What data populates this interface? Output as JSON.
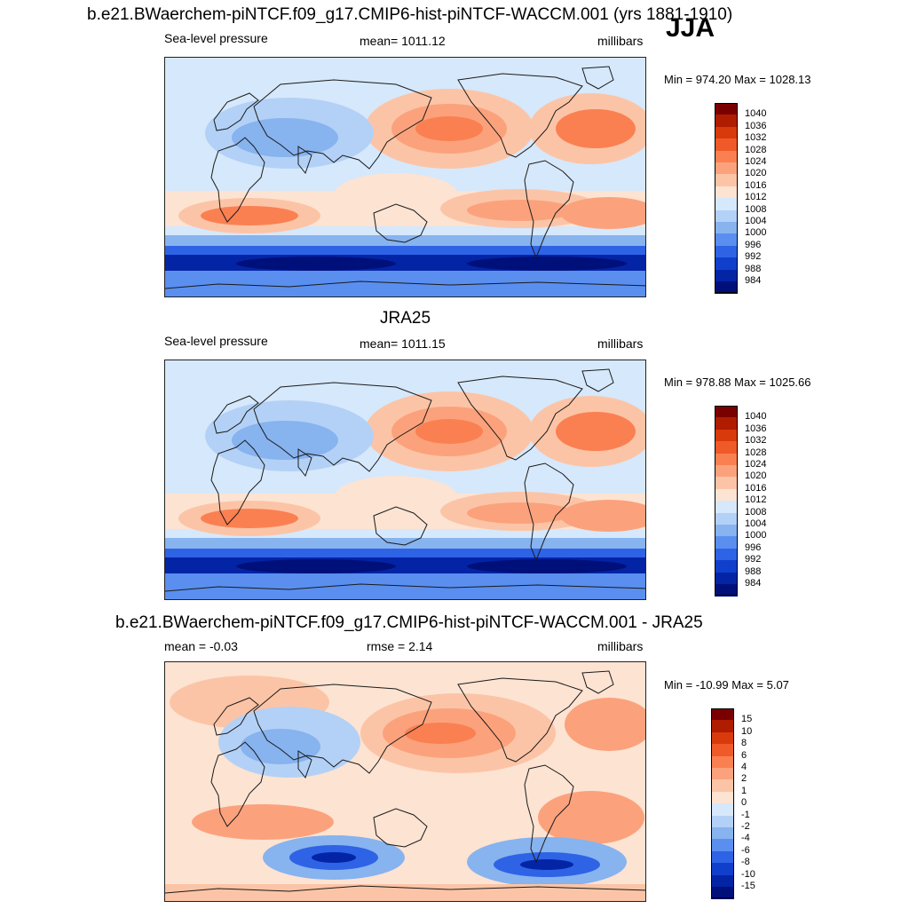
{
  "season": "JJA",
  "units": "millibars",
  "panels": [
    {
      "id": "model",
      "title": "b.e21.BWaerchem-piNTCF.f09_g17.CMIP6-hist-piNTCF-WACCM.001 (yrs 1881-1910)",
      "left_label": "Sea-level pressure",
      "center_label": "mean= 1011.12",
      "right_label": "millibars",
      "minmax": "Min = 974.20 Max = 1028.13",
      "colorbar_labels": [
        "1040",
        "1036",
        "1032",
        "1028",
        "1024",
        "1020",
        "1016",
        "1012",
        "1008",
        "1004",
        "1000",
        "996",
        "992",
        "988",
        "984"
      ]
    },
    {
      "id": "obs",
      "title": "JRA25",
      "left_label": "Sea-level pressure",
      "center_label": "mean= 1011.15",
      "right_label": "millibars",
      "minmax": "Min = 978.88 Max = 1025.66",
      "colorbar_labels": [
        "1040",
        "1036",
        "1032",
        "1028",
        "1024",
        "1020",
        "1016",
        "1012",
        "1008",
        "1004",
        "1000",
        "996",
        "992",
        "988",
        "984"
      ]
    },
    {
      "id": "diff",
      "title": "b.e21.BWaerchem-piNTCF.f09_g17.CMIP6-hist-piNTCF-WACCM.001 - JRA25",
      "left_label": "mean =  -0.03",
      "center_label": "rmse =   2.14",
      "right_label": "millibars",
      "minmax": "Min = -10.99 Max =   5.07",
      "colorbar_labels": [
        "15",
        "10",
        "8",
        "6",
        "4",
        "2",
        "1",
        "0",
        "-1",
        "-2",
        "-4",
        "-6",
        "-8",
        "-10",
        "-15"
      ]
    }
  ],
  "colors": {
    "levels": [
      "#7a0000",
      "#b01c00",
      "#d83a0c",
      "#f05a28",
      "#fa8052",
      "#fba27c",
      "#fcc4a6",
      "#fde3d2",
      "#d6e8fb",
      "#b3d1f6",
      "#87b3ef",
      "#5a8ff0",
      "#2e63e6",
      "#103fcc",
      "#0424a6",
      "#00107a"
    ],
    "coast": "#1a1a1a"
  }
}
